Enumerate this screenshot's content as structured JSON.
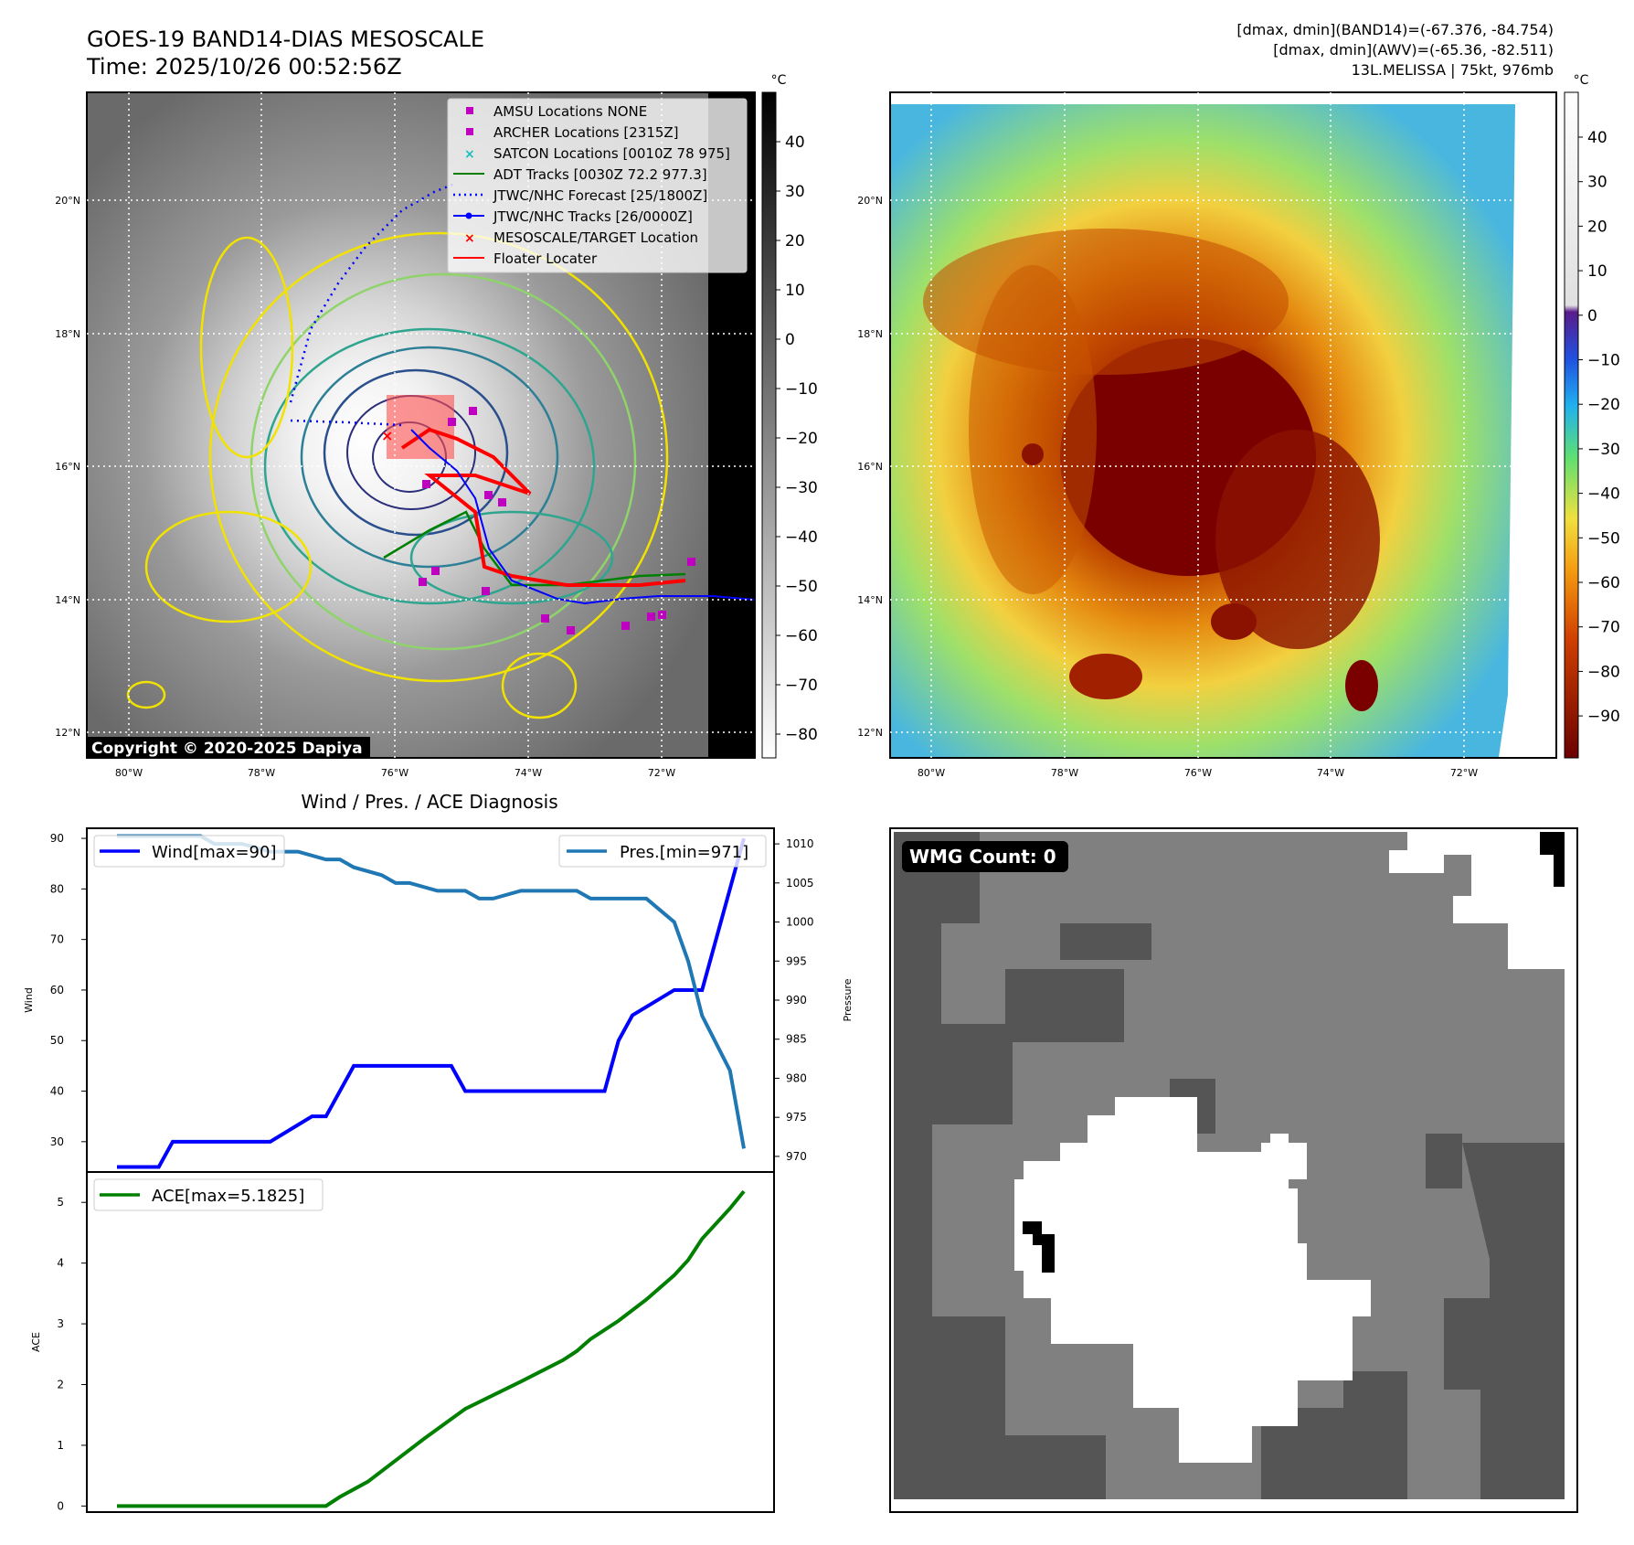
{
  "header": {
    "title": "GOES-19 BAND14-DIAS MESOSCALE",
    "time": "Time: 2025/10/26 00:52:56Z",
    "right_line1": "[dmax, dmin](BAND14)=(-67.376, -84.754)",
    "right_line2": "[dmax, dmin](AWV)=(-65.36, -82.511)",
    "right_line3": "13L.MELISSA | 75kt, 976mb"
  },
  "map": {
    "lat_labels": [
      "20°N",
      "18°N",
      "16°N",
      "14°N",
      "12°N"
    ],
    "lon_labels": [
      "80°W",
      "78°W",
      "76°W",
      "74°W",
      "72°W"
    ],
    "legend": [
      {
        "label": "AMSU Locations NONE",
        "symbol": "square",
        "color": "#c000c0"
      },
      {
        "label": "ARCHER Locations [2315Z]",
        "symbol": "square",
        "color": "#c000c0"
      },
      {
        "label": "SATCON Locations [0010Z 78 975]",
        "symbol": "x",
        "color": "#17bfbf"
      },
      {
        "label": "ADT Tracks [0030Z 72.2 977.3]",
        "symbol": "line",
        "color": "#008000"
      },
      {
        "label": "JTWC/NHC Forecast [25/1800Z]",
        "symbol": "dotted",
        "color": "#0000ff"
      },
      {
        "label": "JTWC/NHC Tracks [26/0000Z]",
        "symbol": "line-dot",
        "color": "#0000ff"
      },
      {
        "label": "MESOSCALE/TARGET Location",
        "symbol": "x",
        "color": "#ff0000"
      },
      {
        "label": "Floater Locater",
        "symbol": "line",
        "color": "#ff0000"
      }
    ],
    "copyright": "Copyright © 2020-2025 Dapiya",
    "colorbar_unit": "°C",
    "colorbar_gray_ticks": [
      "40",
      "30",
      "20",
      "10",
      "0",
      "−10",
      "−20",
      "−30",
      "−40",
      "−50",
      "−60",
      "−70",
      "−80"
    ],
    "colorbar_color_ticks": [
      "40",
      "30",
      "20",
      "10",
      "0",
      "−10",
      "−20",
      "−30",
      "−40",
      "−50",
      "−60",
      "−70",
      "−80",
      "−90"
    ]
  },
  "chart_data": [
    {
      "type": "line",
      "title": "Wind / Pres. / ACE Diagnosis",
      "ylabel": "Wind",
      "ylabel_right": "Pressure",
      "ylim": [
        24,
        92
      ],
      "ylim_right": [
        968,
        1012
      ],
      "yticks": [
        30,
        40,
        50,
        60,
        70,
        80,
        90
      ],
      "yticks_right": [
        970,
        975,
        980,
        985,
        990,
        995,
        1000,
        1005,
        1010
      ],
      "series": [
        {
          "name": "Wind[max=90]",
          "color": "#0000ff",
          "x": [
            0,
            3,
            4,
            11,
            14,
            15,
            17,
            24,
            25,
            27,
            29,
            35,
            36,
            37,
            40,
            42,
            44,
            45
          ],
          "values": [
            25,
            25,
            30,
            30,
            35,
            35,
            45,
            45,
            40,
            40,
            40,
            40,
            50,
            55,
            60,
            60,
            80,
            90
          ]
        },
        {
          "name": "Pres.[min=971]",
          "color": "#1f77b4",
          "x": [
            0,
            4,
            6,
            7,
            9,
            11,
            13,
            15,
            16,
            17,
            19,
            20,
            21,
            23,
            25,
            26,
            27,
            29,
            33,
            34,
            36,
            38,
            40,
            41,
            42,
            44,
            45
          ],
          "values": [
            1011,
            1011,
            1011,
            1010,
            1010,
            1009,
            1009,
            1008,
            1008,
            1007,
            1006,
            1005,
            1005,
            1004,
            1004,
            1003,
            1003,
            1004,
            1004,
            1003,
            1003,
            1003,
            1000,
            995,
            988,
            981,
            971
          ]
        }
      ]
    },
    {
      "type": "line",
      "ylabel": "ACE",
      "ylim": [
        -0.1,
        5.5
      ],
      "yticks": [
        0,
        1,
        2,
        3,
        4,
        5
      ],
      "series": [
        {
          "name": "ACE[max=5.1825]",
          "color": "#008000",
          "x": [
            0,
            15,
            16,
            18,
            20,
            22,
            25,
            29,
            32,
            33,
            34,
            36,
            38,
            40,
            41,
            42,
            44,
            45
          ],
          "values": [
            0,
            0,
            0.15,
            0.4,
            0.75,
            1.1,
            1.6,
            2.05,
            2.4,
            2.55,
            2.75,
            3.05,
            3.4,
            3.8,
            4.05,
            4.4,
            4.9,
            5.1825
          ]
        }
      ]
    }
  ],
  "wmg": {
    "label": "WMG Count: 0"
  }
}
